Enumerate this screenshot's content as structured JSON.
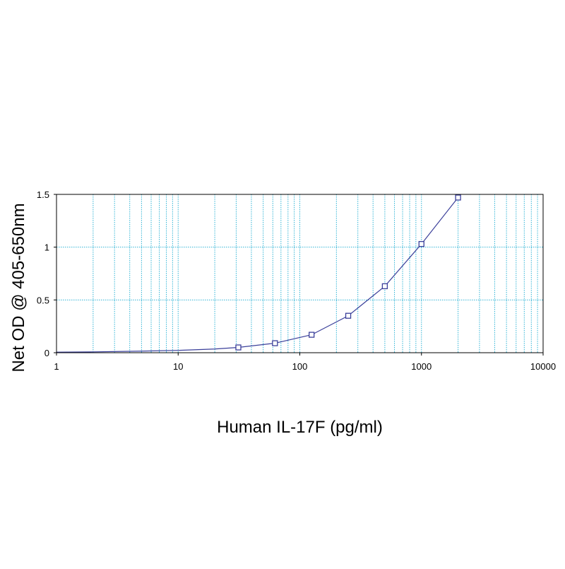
{
  "chart_data": {
    "type": "line",
    "title": "",
    "xlabel": "Human IL-17F (pg/ml)",
    "ylabel": "Net OD @ 405-650nm",
    "x_scale": "log",
    "xlim": [
      1,
      10000
    ],
    "ylim": [
      0,
      1.5
    ],
    "x_ticks": [
      "1",
      "10",
      "100",
      "1000",
      "10000"
    ],
    "y_ticks": [
      "0",
      "0.5",
      "1",
      "1.5"
    ],
    "grid": true,
    "legend": "none",
    "series": [
      {
        "marker": "square",
        "x": [
          31.25,
          62.5,
          125,
          250,
          500,
          1000,
          2000
        ],
        "y": [
          0.05,
          0.09,
          0.17,
          0.35,
          0.63,
          1.03,
          1.47
        ]
      }
    ],
    "fit_curve": {
      "x": [
        1,
        2,
        5,
        10,
        20,
        31.25,
        62.5,
        125,
        250,
        500,
        1000,
        2000
      ],
      "y": [
        0.005,
        0.008,
        0.015,
        0.022,
        0.035,
        0.05,
        0.09,
        0.17,
        0.35,
        0.63,
        1.03,
        1.47
      ]
    },
    "colors": {
      "grid": "#33b5d6",
      "series": "#3a3f9a",
      "frame": "#000000"
    }
  }
}
